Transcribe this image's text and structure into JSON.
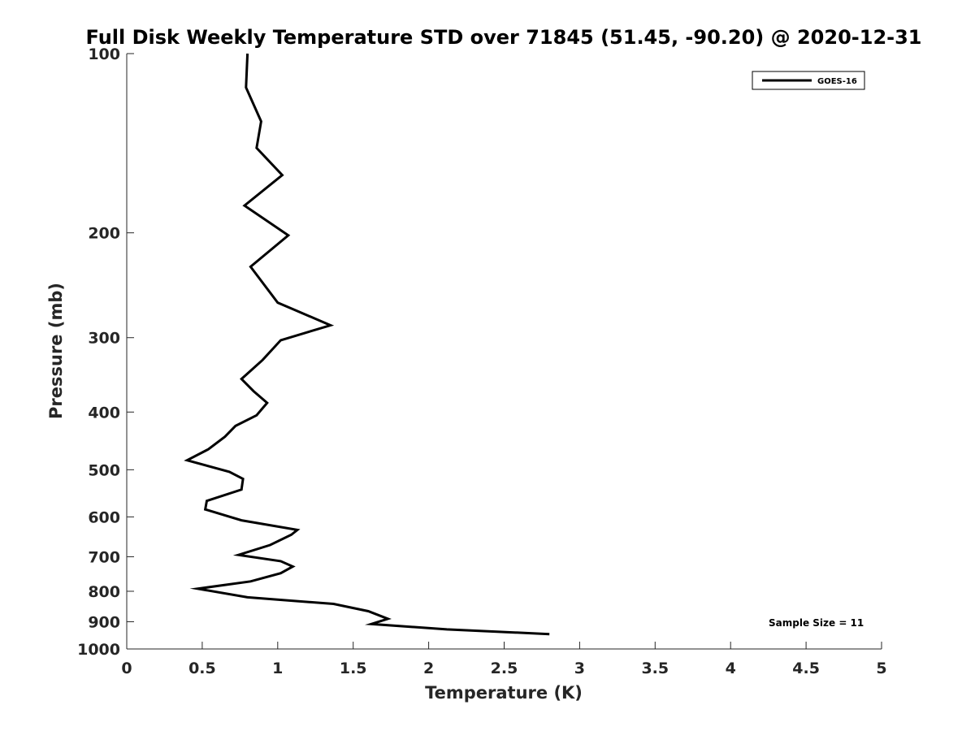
{
  "chart_data": {
    "type": "line",
    "title": "Full Disk Weekly Temperature STD over 71845 (51.45, -90.20) @ 2020-12-31",
    "xlabel": "Temperature (K)",
    "ylabel": "Pressure (mb)",
    "xlim": [
      0,
      5
    ],
    "ylim": [
      100,
      1000
    ],
    "y_scale": "log",
    "y_reversed": true,
    "x_ticks": [
      "0",
      "0.5",
      "1",
      "1.5",
      "2",
      "2.5",
      "3",
      "3.5",
      "4",
      "4.5",
      "5"
    ],
    "x_tick_values": [
      0,
      0.5,
      1,
      1.5,
      2,
      2.5,
      3,
      3.5,
      4,
      4.5,
      5
    ],
    "y_ticks": [
      "100",
      "200",
      "300",
      "400",
      "500",
      "600",
      "700",
      "800",
      "900",
      "1000"
    ],
    "y_tick_values": [
      100,
      200,
      300,
      400,
      500,
      600,
      700,
      800,
      900,
      1000
    ],
    "grid": false,
    "legend_position": "top-right",
    "annotation": "Sample Size = 11",
    "line_color": "#000000",
    "series": [
      {
        "name": "GOES-16",
        "x": [
          0.8,
          0.79,
          0.89,
          0.86,
          1.03,
          0.78,
          1.07,
          0.82,
          1.0,
          1.35,
          1.02,
          0.9,
          0.76,
          0.84,
          0.93,
          0.86,
          0.72,
          0.65,
          0.54,
          0.4,
          0.68,
          0.77,
          0.76,
          0.53,
          0.52,
          0.76,
          1.13,
          1.09,
          0.95,
          0.74,
          1.02,
          1.1,
          1.02,
          0.82,
          0.47,
          0.8,
          1.37,
          1.6,
          1.73,
          1.62,
          2.12,
          2.8
        ],
        "y": [
          100,
          114,
          130,
          144,
          160,
          180,
          202,
          228,
          262,
          286,
          303,
          327,
          352,
          369,
          386,
          405,
          422,
          440,
          462,
          482,
          504,
          518,
          540,
          564,
          583,
          608,
          631,
          643,
          669,
          695,
          712,
          727,
          746,
          770,
          792,
          819,
          840,
          864,
          890,
          908,
          927,
          944
        ]
      }
    ]
  }
}
